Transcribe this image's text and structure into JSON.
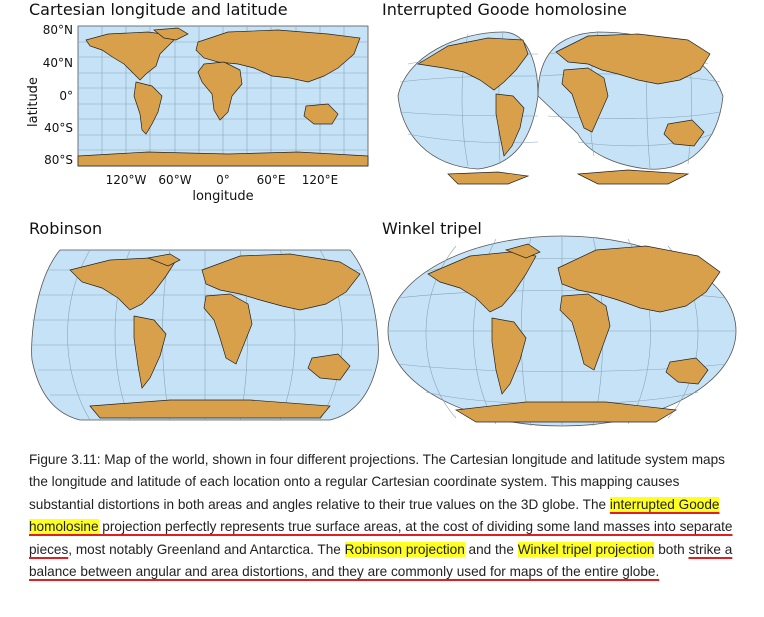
{
  "panels": {
    "cartesian": {
      "title": "Cartesian longitude and latitude",
      "ylabel": "latitude",
      "xlabel": "longitude",
      "lat_ticks": [
        "80°N",
        "40°N",
        "0°",
        "40°S",
        "80°S"
      ],
      "lon_ticks": [
        "120°W",
        "60°W",
        "0°",
        "60°E",
        "120°E"
      ]
    },
    "goode": {
      "title": "Interrupted Goode homolosine"
    },
    "robinson": {
      "title": "Robinson"
    },
    "winkel": {
      "title": "Winkel tripel"
    }
  },
  "colors": {
    "ocean": "#c6e2f7",
    "land": "#d8a04a",
    "graticule": "#8aa5b8",
    "highlight": "#ffff22",
    "underline": "#e02020"
  },
  "caption": {
    "p1": "Figure 3.11: Map of the world, shown in four different projections. The Cartesian longitude and latitude system maps the longitude and latitude of each location onto a regular Cartesian coordinate system. This mapping causes substantial distortions in both areas and angles relative to their true values on the 3D globe. The ",
    "hl1": "interrupted Goode homolosine",
    "ul1": " projection perfectly represents true surface areas, at the cost of dividing some land masses into separate pieces",
    "p2": ", most notably Greenland and Antarctica. The ",
    "hl2": "Robinson projection",
    "p3": " and the ",
    "hl3": "Winkel tripel projection",
    "p4": " both ",
    "ul2": "strike a balance between angular and area distortions, and they are commonly used for maps of the entire globe."
  }
}
